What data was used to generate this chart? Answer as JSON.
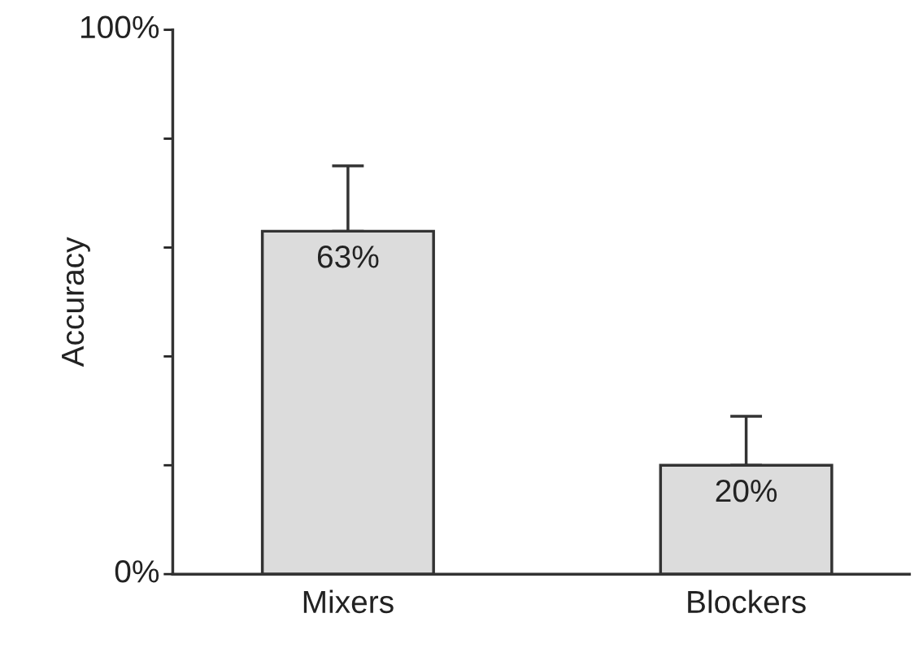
{
  "chart_data": {
    "type": "bar",
    "ylabel": "Accuracy",
    "categories": [
      "Mixers",
      "Blockers"
    ],
    "values": [
      63,
      20
    ],
    "color": "#dcdcdc",
    "errors": [
      [
        63,
        75
      ],
      [
        20,
        29
      ]
    ],
    "value_labels": [
      "63%",
      "20%"
    ],
    "ylim": [
      0,
      100
    ],
    "yticks": [
      {
        "value": 0,
        "label": "0%"
      },
      {
        "value": 20,
        "label": null
      },
      {
        "value": 40,
        "label": null
      },
      {
        "value": 60,
        "label": null
      },
      {
        "value": 80,
        "label": null
      },
      {
        "value": 100,
        "label": "100%"
      }
    ],
    "grid": false,
    "legend": false
  }
}
